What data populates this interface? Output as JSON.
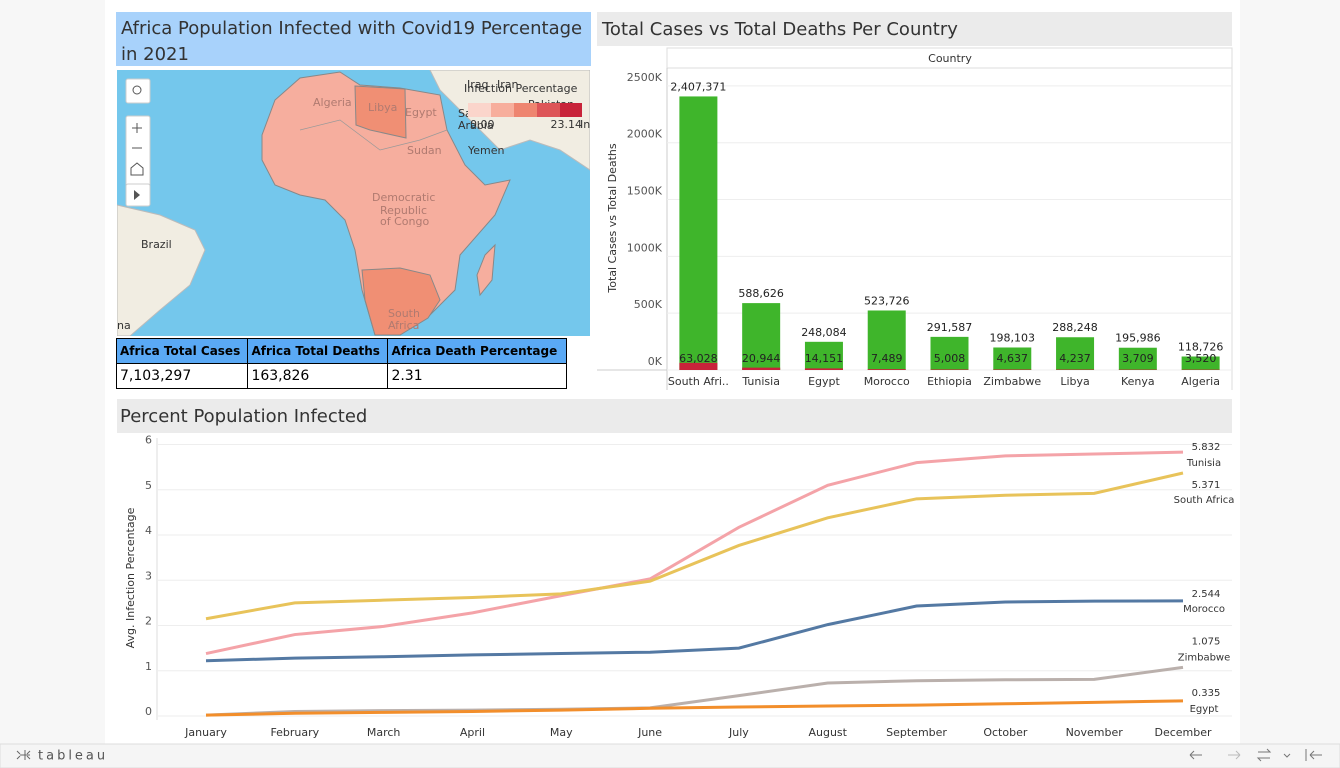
{
  "map": {
    "title": "Africa Population Infected with Covid19 Percentage in 2021",
    "legend_title": "Infection Percentage",
    "legend_min": "0.00",
    "legend_max": "23.14",
    "labels": [
      "Iraq",
      "Iran",
      "Algeria",
      "Libya",
      "Egypt",
      "Saudi",
      "Arabia",
      "Pakistan",
      "Ind",
      "Yemen",
      "Sudan",
      "Democratic",
      "Republic",
      "of Congo",
      "Brazil",
      "South",
      "Africa",
      "na"
    ]
  },
  "table": {
    "headers": [
      "Africa Total Cases",
      "Africa Total Deaths",
      "Africa Death Percentage"
    ],
    "rows": [
      [
        "7,103,297",
        "163,826",
        "2.31"
      ]
    ]
  },
  "chart_data": [
    {
      "type": "bar",
      "title": "Total Cases vs Total Deaths Per Country",
      "header": "Country",
      "y_label": "Total Cases vs Total Deaths",
      "categories": [
        "South Afri..",
        "Tunisia",
        "Egypt",
        "Morocco",
        "Ethiopia",
        "Zimbabwe",
        "Libya",
        "Kenya",
        "Algeria"
      ],
      "series": [
        {
          "color": "#3fb52b",
          "values": [
            2407371,
            588626,
            248084,
            523726,
            291587,
            198103,
            288248,
            195986,
            118726
          ],
          "value_labels": [
            "2,407,371",
            "588,626",
            "248,084",
            "523,726",
            "291,587",
            "198,103",
            "288,248",
            "195,986",
            "118,726"
          ]
        },
        {
          "color": "#c8233a",
          "values": [
            63028,
            20944,
            14151,
            7489,
            5008,
            4637,
            4237,
            3709,
            3520
          ],
          "value_labels": [
            "63,028",
            "20,944",
            "14,151",
            "7,489",
            "5,008",
            "4,637",
            "4,237",
            "3,709",
            "3,520"
          ]
        }
      ],
      "ylim": [
        0,
        2640000
      ],
      "yticks": [
        {
          "value": 0,
          "label": "0K"
        },
        {
          "value": 500000,
          "label": "500K"
        },
        {
          "value": 1000000,
          "label": "1000K"
        },
        {
          "value": 1500000,
          "label": "1500K"
        },
        {
          "value": 2000000,
          "label": "2000K"
        },
        {
          "value": 2500000,
          "label": "2500K"
        }
      ],
      "grid": true
    },
    {
      "type": "line",
      "title": "Percent Population Infected",
      "y_label": "Avg. Infection Percentage",
      "categories": [
        "January",
        "February",
        "March",
        "April",
        "May",
        "June",
        "July",
        "August",
        "September",
        "October",
        "November",
        "December"
      ],
      "series": [
        {
          "name": "Tunisia",
          "color": "#f4a3a8",
          "values": [
            1.38,
            1.8,
            1.98,
            2.28,
            2.66,
            3.03,
            4.17,
            5.1,
            5.6,
            5.75,
            5.79,
            5.832
          ]
        },
        {
          "name": "South Africa",
          "color": "#e8c35a",
          "values": [
            2.15,
            2.5,
            2.56,
            2.62,
            2.7,
            2.98,
            3.77,
            4.38,
            4.8,
            4.88,
            4.92,
            5.371
          ]
        },
        {
          "name": "Morocco",
          "color": "#5479a3",
          "values": [
            1.22,
            1.28,
            1.31,
            1.35,
            1.38,
            1.41,
            1.5,
            2.02,
            2.43,
            2.52,
            2.54,
            2.544
          ]
        },
        {
          "name": "Zimbabwe",
          "color": "#bab0ac",
          "values": [
            0.02,
            0.1,
            0.12,
            0.13,
            0.15,
            0.18,
            0.45,
            0.73,
            0.78,
            0.8,
            0.81,
            1.075
          ]
        },
        {
          "name": "Egypt",
          "color": "#f28e2b",
          "values": [
            0.02,
            0.06,
            0.08,
            0.1,
            0.13,
            0.17,
            0.2,
            0.22,
            0.24,
            0.27,
            0.3,
            0.335
          ]
        }
      ],
      "ylim": [
        0,
        6.1
      ],
      "yticks": [
        0,
        1,
        2,
        3,
        4,
        5,
        6
      ],
      "grid": true
    }
  ],
  "footer": {
    "brand": "tableau"
  }
}
